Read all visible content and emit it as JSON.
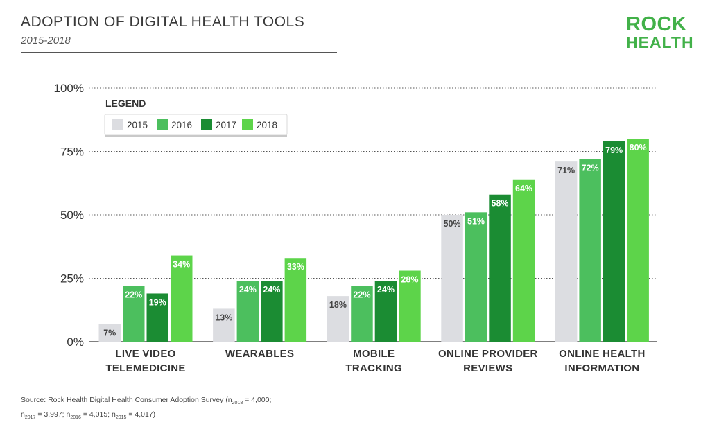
{
  "header": {
    "title": "ADOPTION OF DIGITAL HEALTH TOOLS",
    "subtitle": "2015-2018"
  },
  "logo": {
    "line1": "ROCK",
    "line2": "HEALTH"
  },
  "footnote": {
    "line1_prefix": "Source: Rock Health Digital Health Consumer Adoption Survey (n",
    "n2018_sub": "2018",
    "n2018_val": " = 4,000;",
    "n2017_prefix": "n",
    "n2017_sub": "2017",
    "n2017_val": " = 3,997; ",
    "n2016_prefix": "n",
    "n2016_sub": "2016",
    "n2016_val": " = 4,015; ",
    "n2015_prefix": "n",
    "n2015_sub": "2015",
    "n2015_val": " = 4,017)"
  },
  "colors": {
    "s2015": "#dcdde1",
    "s2016": "#4cbf5e",
    "s2017": "#1b8c33",
    "s2018": "#5dd44a"
  },
  "chart_data": {
    "type": "bar",
    "title": "ADOPTION OF DIGITAL HEALTH TOOLS",
    "subtitle": "2015-2018",
    "categories": [
      [
        "LIVE VIDEO",
        "TELEMEDICINE"
      ],
      [
        "WEARABLES"
      ],
      [
        "MOBILE",
        "TRACKING"
      ],
      [
        "ONLINE PROVIDER",
        "REVIEWS"
      ],
      [
        "ONLINE HEALTH",
        "INFORMATION"
      ]
    ],
    "series": [
      {
        "name": "2015",
        "values": [
          7,
          13,
          18,
          50,
          71
        ]
      },
      {
        "name": "2016",
        "values": [
          22,
          24,
          22,
          51,
          72
        ]
      },
      {
        "name": "2017",
        "values": [
          19,
          24,
          24,
          58,
          79
        ]
      },
      {
        "name": "2018",
        "values": [
          34,
          33,
          28,
          64,
          80
        ]
      }
    ],
    "ylim": [
      0,
      100
    ],
    "yticks": [
      0,
      25,
      50,
      75,
      100
    ],
    "ytick_labels": [
      "0%",
      "25%",
      "50%",
      "75%",
      "100%"
    ],
    "value_suffix": "%",
    "legend": {
      "title": "LEGEND",
      "placement": "top-left"
    },
    "grid": true
  }
}
